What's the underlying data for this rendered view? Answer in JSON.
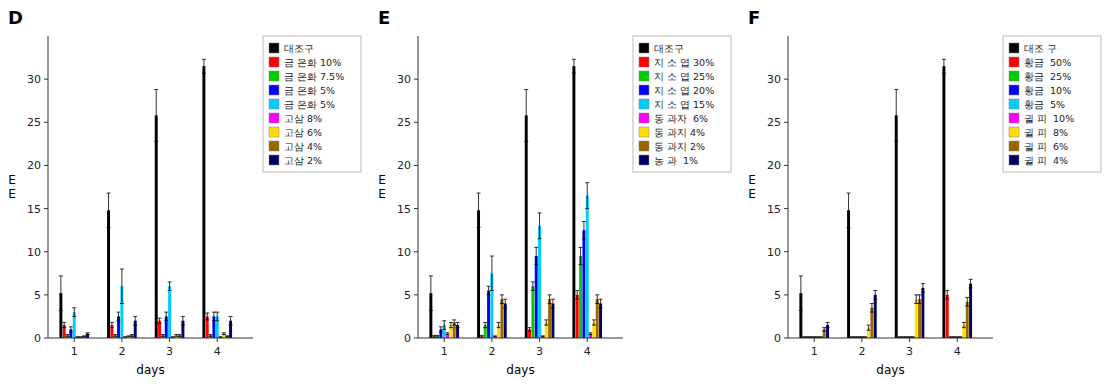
{
  "chart_data": [
    {
      "type": "bar",
      "title": "D",
      "xlabel": "days",
      "ylabel": "E\nE",
      "x": [
        1,
        2,
        3,
        4
      ],
      "xlim": [
        0.45,
        4.75
      ],
      "xticks": [
        1,
        2,
        3,
        4
      ],
      "ylim": [
        0,
        35
      ],
      "yticks": [
        0,
        5,
        10,
        15,
        20,
        25,
        30
      ],
      "grid": false,
      "legend": "right",
      "series": [
        {
          "name": "대조구",
          "color": "#000000",
          "values": [
            5.2,
            14.8,
            25.8,
            31.5
          ],
          "errors": [
            2.0,
            2.0,
            3.0,
            0.8
          ]
        },
        {
          "name": "금 은화 10%",
          "color": "#ff0000",
          "values": [
            1.5,
            1.5,
            2.0,
            2.5
          ],
          "errors": [
            0.3,
            0.3,
            0.3,
            0.4
          ]
        },
        {
          "name": "금 은화 7.5%",
          "color": "#00cc00",
          "values": [
            0.3,
            0.3,
            0.3,
            0.3
          ],
          "errors": [
            0.1,
            0.1,
            0.1,
            0.1
          ]
        },
        {
          "name": "금 은화 5%",
          "color": "#0000ff",
          "values": [
            1.0,
            2.5,
            2.5,
            2.5
          ],
          "errors": [
            0.3,
            0.5,
            0.5,
            0.5
          ]
        },
        {
          "name": "금 은화 5%",
          "color": "#00ccff",
          "values": [
            3.0,
            6.0,
            6.0,
            2.5
          ],
          "errors": [
            0.5,
            2.0,
            0.5,
            0.5
          ]
        },
        {
          "name": "고삼 8%",
          "color": "#ff00ff",
          "values": [
            0.1,
            0.1,
            0.1,
            0.1
          ],
          "errors": [
            0.05,
            0.05,
            0.05,
            0.05
          ]
        },
        {
          "name": "고삼 6%",
          "color": "#ffdd00",
          "values": [
            0.1,
            0.2,
            0.3,
            0.5
          ],
          "errors": [
            0.05,
            0.05,
            0.1,
            0.1
          ]
        },
        {
          "name": "고삼 4%",
          "color": "#996600",
          "values": [
            0.2,
            0.3,
            0.3,
            0.2
          ],
          "errors": [
            0.05,
            0.1,
            0.1,
            0.05
          ]
        },
        {
          "name": "고삼 2%",
          "color": "#000066",
          "values": [
            0.5,
            2.0,
            2.0,
            2.0
          ],
          "errors": [
            0.1,
            0.5,
            0.5,
            0.5
          ]
        }
      ]
    },
    {
      "type": "bar",
      "title": "E",
      "xlabel": "days",
      "ylabel": "E\nE",
      "x": [
        1,
        2,
        3,
        4
      ],
      "xlim": [
        0.45,
        4.75
      ],
      "xticks": [
        1,
        2,
        3,
        4
      ],
      "ylim": [
        0,
        35
      ],
      "yticks": [
        0,
        5,
        10,
        15,
        20,
        25,
        30
      ],
      "grid": false,
      "legend": "right",
      "series": [
        {
          "name": "대조구",
          "color": "#000000",
          "values": [
            5.2,
            14.8,
            25.8,
            31.5
          ],
          "errors": [
            2.0,
            2.0,
            3.0,
            0.8
          ]
        },
        {
          "name": "지 소 엽 30%",
          "color": "#ff0000",
          "values": [
            0.2,
            0.2,
            1.0,
            5.0
          ],
          "errors": [
            0.1,
            0.1,
            0.2,
            0.5
          ]
        },
        {
          "name": "지 소 엽 25%",
          "color": "#00cc00",
          "values": [
            0.2,
            1.5,
            6.0,
            9.5
          ],
          "errors": [
            0.1,
            0.3,
            0.5,
            1.0
          ]
        },
        {
          "name": "지 소 엽 20%",
          "color": "#0000ff",
          "values": [
            1.0,
            5.5,
            9.5,
            12.5
          ],
          "errors": [
            0.3,
            0.5,
            1.0,
            1.0
          ]
        },
        {
          "name": "지 소 엽 15%",
          "color": "#00ccff",
          "values": [
            1.5,
            7.5,
            13.0,
            16.5
          ],
          "errors": [
            0.5,
            2.0,
            1.5,
            1.5
          ]
        },
        {
          "name": "동 과자  6%",
          "color": "#ff00ff",
          "values": [
            0.5,
            0.2,
            0.2,
            0.5
          ],
          "errors": [
            0.1,
            0.05,
            0.05,
            0.1
          ]
        },
        {
          "name": "동 과지 4%",
          "color": "#ffdd00",
          "values": [
            1.5,
            1.5,
            1.8,
            1.8
          ],
          "errors": [
            0.3,
            0.3,
            0.3,
            0.3
          ]
        },
        {
          "name": "동 과지 2%",
          "color": "#996600",
          "values": [
            1.8,
            4.5,
            4.5,
            4.5
          ],
          "errors": [
            0.3,
            0.5,
            0.5,
            0.5
          ]
        },
        {
          "name": "농 과  1%",
          "color": "#000066",
          "values": [
            1.5,
            4.0,
            4.0,
            4.0
          ],
          "errors": [
            0.3,
            0.5,
            0.5,
            0.5
          ]
        }
      ]
    },
    {
      "type": "bar",
      "title": "F",
      "xlabel": "days",
      "ylabel": "E\nE",
      "x": [
        1,
        2,
        3,
        4
      ],
      "xlim": [
        0.45,
        4.75
      ],
      "xticks": [
        1,
        2,
        3,
        4
      ],
      "ylim": [
        0,
        35
      ],
      "yticks": [
        0,
        5,
        10,
        15,
        20,
        25,
        30
      ],
      "grid": false,
      "legend": "right",
      "series": [
        {
          "name": "대조 구",
          "color": "#000000",
          "values": [
            5.2,
            14.8,
            25.8,
            31.5
          ],
          "errors": [
            2.0,
            2.0,
            3.0,
            0.8
          ]
        },
        {
          "name": "황금  50%",
          "color": "#ff0000",
          "values": [
            0.1,
            0.1,
            0.1,
            5.0
          ],
          "errors": [
            0.05,
            0.05,
            0.05,
            0.5
          ]
        },
        {
          "name": "황금  25%",
          "color": "#00cc00",
          "values": [
            0.1,
            0.1,
            0.1,
            0.1
          ],
          "errors": [
            0.05,
            0.05,
            0.05,
            0.05
          ]
        },
        {
          "name": "황금  10%",
          "color": "#0000ff",
          "values": [
            0.1,
            0.1,
            0.1,
            0.1
          ],
          "errors": [
            0.05,
            0.05,
            0.05,
            0.05
          ]
        },
        {
          "name": "황금  5%",
          "color": "#00ccff",
          "values": [
            0.1,
            0.1,
            0.1,
            0.1
          ],
          "errors": [
            0.05,
            0.05,
            0.05,
            0.05
          ]
        },
        {
          "name": "귈 피  10%",
          "color": "#ff00ff",
          "values": [
            0.1,
            0.1,
            0.1,
            0.1
          ],
          "errors": [
            0.05,
            0.05,
            0.05,
            0.05
          ]
        },
        {
          "name": "귈 피  8%",
          "color": "#ffdd00",
          "values": [
            0.1,
            1.2,
            4.5,
            1.5
          ],
          "errors": [
            0.05,
            0.3,
            0.5,
            0.3
          ]
        },
        {
          "name": "귈 피  6%",
          "color": "#996600",
          "values": [
            1.0,
            3.5,
            4.5,
            4.2
          ],
          "errors": [
            0.2,
            0.5,
            0.5,
            0.5
          ]
        },
        {
          "name": "귈 피  4%",
          "color": "#000066",
          "values": [
            1.5,
            5.0,
            5.8,
            6.3
          ],
          "errors": [
            0.3,
            0.5,
            0.5,
            0.5
          ]
        }
      ]
    }
  ]
}
